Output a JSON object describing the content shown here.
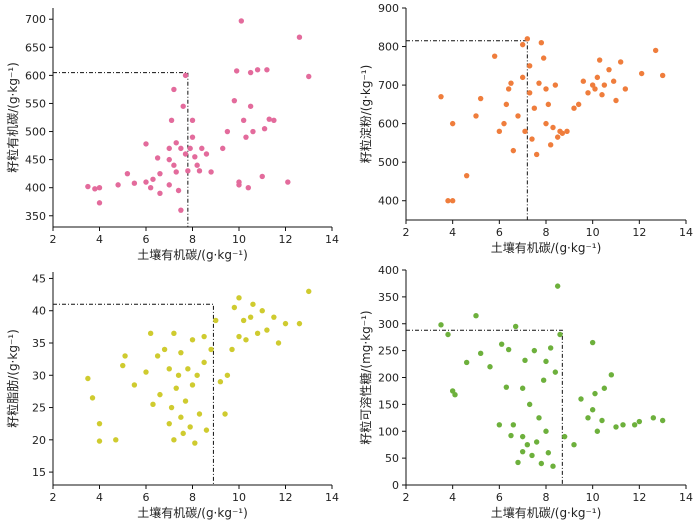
{
  "chart_data": [
    {
      "type": "scatter",
      "color": "#e36b9c",
      "xlabel": "土壤有机碳/(g·kg⁻¹)",
      "ylabel": "籽粒有机碳/(g·kg⁻¹)",
      "xlim": [
        2,
        14
      ],
      "ylim": [
        330,
        720
      ],
      "xticks": [
        2,
        4,
        6,
        8,
        10,
        12,
        14
      ],
      "yticks": [
        350,
        400,
        450,
        500,
        550,
        600,
        650,
        700
      ],
      "threshold": {
        "x": 7.8,
        "y": 605
      },
      "points": [
        [
          3.5,
          402
        ],
        [
          3.8,
          398
        ],
        [
          4.0,
          373
        ],
        [
          4.0,
          400
        ],
        [
          4.8,
          405
        ],
        [
          5.2,
          425
        ],
        [
          5.5,
          408
        ],
        [
          6.0,
          410
        ],
        [
          6.0,
          478
        ],
        [
          6.2,
          400
        ],
        [
          6.3,
          415
        ],
        [
          6.5,
          453
        ],
        [
          6.6,
          390
        ],
        [
          6.6,
          425
        ],
        [
          7.0,
          405
        ],
        [
          7.0,
          450
        ],
        [
          7.0,
          470
        ],
        [
          7.1,
          520
        ],
        [
          7.2,
          440
        ],
        [
          7.2,
          575
        ],
        [
          7.3,
          428
        ],
        [
          7.3,
          480
        ],
        [
          7.4,
          395
        ],
        [
          7.5,
          360
        ],
        [
          7.5,
          470
        ],
        [
          7.6,
          545
        ],
        [
          7.7,
          460
        ],
        [
          7.7,
          600
        ],
        [
          7.8,
          430
        ],
        [
          7.9,
          470
        ],
        [
          8.0,
          490
        ],
        [
          8.0,
          520
        ],
        [
          8.1,
          455
        ],
        [
          8.2,
          440
        ],
        [
          8.3,
          430
        ],
        [
          8.4,
          470
        ],
        [
          8.6,
          460
        ],
        [
          8.8,
          428
        ],
        [
          9.3,
          470
        ],
        [
          9.5,
          500
        ],
        [
          9.8,
          555
        ],
        [
          9.9,
          608
        ],
        [
          10.0,
          405
        ],
        [
          10.0,
          410
        ],
        [
          10.1,
          697
        ],
        [
          10.2,
          520
        ],
        [
          10.3,
          490
        ],
        [
          10.4,
          400
        ],
        [
          10.5,
          545
        ],
        [
          10.5,
          605
        ],
        [
          10.6,
          500
        ],
        [
          10.8,
          610
        ],
        [
          11.0,
          420
        ],
        [
          11.1,
          505
        ],
        [
          11.2,
          610
        ],
        [
          11.3,
          522
        ],
        [
          11.5,
          520
        ],
        [
          12.1,
          410
        ],
        [
          12.6,
          668
        ],
        [
          13.0,
          598
        ]
      ]
    },
    {
      "type": "scatter",
      "color": "#ef7d3c",
      "xlabel": "土壤有机碳/(g·kg⁻¹)",
      "ylabel": "籽粒淀粉/(g·kg⁻¹)",
      "xlim": [
        2,
        14
      ],
      "ylim": [
        350,
        900
      ],
      "xticks": [
        2,
        4,
        6,
        8,
        10,
        12,
        14
      ],
      "yticks": [
        400,
        500,
        600,
        700,
        800,
        900
      ],
      "threshold": {
        "x": 7.2,
        "y": 815
      },
      "points": [
        [
          3.5,
          670
        ],
        [
          3.8,
          400
        ],
        [
          4.0,
          400
        ],
        [
          4.0,
          600
        ],
        [
          4.6,
          465
        ],
        [
          5.0,
          620
        ],
        [
          5.2,
          665
        ],
        [
          5.8,
          775
        ],
        [
          6.0,
          580
        ],
        [
          6.2,
          600
        ],
        [
          6.3,
          650
        ],
        [
          6.4,
          690
        ],
        [
          6.5,
          705
        ],
        [
          6.6,
          530
        ],
        [
          6.8,
          620
        ],
        [
          7.0,
          805
        ],
        [
          7.0,
          720
        ],
        [
          7.1,
          580
        ],
        [
          7.2,
          820
        ],
        [
          7.3,
          750
        ],
        [
          7.3,
          680
        ],
        [
          7.4,
          560
        ],
        [
          7.5,
          640
        ],
        [
          7.6,
          520
        ],
        [
          7.7,
          705
        ],
        [
          7.8,
          810
        ],
        [
          7.9,
          770
        ],
        [
          8.0,
          600
        ],
        [
          8.0,
          690
        ],
        [
          8.1,
          650
        ],
        [
          8.2,
          545
        ],
        [
          8.3,
          590
        ],
        [
          8.4,
          700
        ],
        [
          8.5,
          565
        ],
        [
          8.6,
          580
        ],
        [
          8.7,
          575
        ],
        [
          8.9,
          580
        ],
        [
          9.2,
          640
        ],
        [
          9.4,
          650
        ],
        [
          9.6,
          710
        ],
        [
          9.8,
          680
        ],
        [
          10.0,
          700
        ],
        [
          10.1,
          690
        ],
        [
          10.2,
          720
        ],
        [
          10.3,
          765
        ],
        [
          10.4,
          675
        ],
        [
          10.5,
          700
        ],
        [
          10.7,
          740
        ],
        [
          10.9,
          710
        ],
        [
          11.0,
          660
        ],
        [
          11.2,
          760
        ],
        [
          11.4,
          690
        ],
        [
          12.1,
          730
        ],
        [
          12.7,
          790
        ],
        [
          13.0,
          725
        ]
      ]
    },
    {
      "type": "scatter",
      "color": "#cfcb2f",
      "xlabel": "土壤有机碳/(g·kg⁻¹)",
      "ylabel": "籽粒脂肪/(g·kg⁻¹)",
      "xlim": [
        2,
        14
      ],
      "ylim": [
        13,
        46
      ],
      "xticks": [
        2,
        4,
        6,
        8,
        10,
        12,
        14
      ],
      "yticks": [
        15,
        20,
        25,
        30,
        35,
        40,
        45
      ],
      "threshold": {
        "x": 8.9,
        "y": 41
      },
      "points": [
        [
          3.5,
          29.5
        ],
        [
          3.7,
          26.5
        ],
        [
          4.0,
          19.8
        ],
        [
          4.0,
          22.5
        ],
        [
          4.7,
          20.0
        ],
        [
          5.0,
          31.5
        ],
        [
          5.1,
          33.0
        ],
        [
          5.5,
          28.5
        ],
        [
          6.0,
          30.5
        ],
        [
          6.2,
          36.5
        ],
        [
          6.3,
          25.5
        ],
        [
          6.5,
          33.0
        ],
        [
          6.6,
          27.0
        ],
        [
          6.8,
          34.0
        ],
        [
          7.0,
          22.5
        ],
        [
          7.0,
          31.0
        ],
        [
          7.1,
          25.0
        ],
        [
          7.2,
          20.0
        ],
        [
          7.2,
          36.5
        ],
        [
          7.3,
          28.0
        ],
        [
          7.4,
          30.0
        ],
        [
          7.5,
          23.5
        ],
        [
          7.5,
          33.5
        ],
        [
          7.6,
          21.0
        ],
        [
          7.7,
          26.0
        ],
        [
          7.8,
          31.0
        ],
        [
          7.9,
          22.0
        ],
        [
          8.0,
          35.5
        ],
        [
          8.0,
          28.5
        ],
        [
          8.1,
          19.5
        ],
        [
          8.2,
          30.0
        ],
        [
          8.3,
          24.0
        ],
        [
          8.5,
          36.0
        ],
        [
          8.5,
          32.0
        ],
        [
          8.6,
          21.5
        ],
        [
          8.8,
          34.0
        ],
        [
          9.0,
          38.5
        ],
        [
          9.2,
          29.0
        ],
        [
          9.4,
          24.0
        ],
        [
          9.5,
          30.0
        ],
        [
          9.7,
          34.0
        ],
        [
          9.8,
          40.5
        ],
        [
          10.0,
          42.0
        ],
        [
          10.0,
          36.0
        ],
        [
          10.2,
          38.5
        ],
        [
          10.3,
          35.5
        ],
        [
          10.5,
          39.0
        ],
        [
          10.6,
          41.0
        ],
        [
          10.8,
          36.5
        ],
        [
          11.0,
          40.0
        ],
        [
          11.2,
          37.0
        ],
        [
          11.5,
          39.0
        ],
        [
          11.7,
          35.0
        ],
        [
          12.0,
          38.0
        ],
        [
          12.6,
          38.0
        ],
        [
          13.0,
          43.0
        ]
      ]
    },
    {
      "type": "scatter",
      "color": "#6db03c",
      "xlabel": "土壤有机碳/(g·kg⁻¹)",
      "ylabel": "籽粒可溶性糖/(mg·kg⁻¹)",
      "xlim": [
        2,
        14
      ],
      "ylim": [
        0,
        400
      ],
      "xticks": [
        2,
        4,
        6,
        8,
        10,
        12,
        14
      ],
      "yticks": [
        0,
        50,
        100,
        150,
        200,
        250,
        300,
        350,
        400
      ],
      "threshold": {
        "x": 8.7,
        "y": 288
      },
      "points": [
        [
          3.5,
          298
        ],
        [
          3.8,
          280
        ],
        [
          4.0,
          175
        ],
        [
          4.1,
          168
        ],
        [
          4.6,
          228
        ],
        [
          5.0,
          315
        ],
        [
          5.2,
          245
        ],
        [
          5.6,
          220
        ],
        [
          6.0,
          112
        ],
        [
          6.1,
          262
        ],
        [
          6.3,
          182
        ],
        [
          6.4,
          252
        ],
        [
          6.5,
          92
        ],
        [
          6.6,
          112
        ],
        [
          6.7,
          295
        ],
        [
          6.8,
          42
        ],
        [
          7.0,
          62
        ],
        [
          7.0,
          90
        ],
        [
          7.0,
          180
        ],
        [
          7.1,
          232
        ],
        [
          7.2,
          75
        ],
        [
          7.3,
          150
        ],
        [
          7.4,
          55
        ],
        [
          7.5,
          250
        ],
        [
          7.6,
          80
        ],
        [
          7.7,
          125
        ],
        [
          7.8,
          40
        ],
        [
          7.9,
          195
        ],
        [
          8.0,
          230
        ],
        [
          8.0,
          100
        ],
        [
          8.1,
          60
        ],
        [
          8.2,
          255
        ],
        [
          8.3,
          35
        ],
        [
          8.4,
          210
        ],
        [
          8.5,
          370
        ],
        [
          8.6,
          280
        ],
        [
          8.8,
          90
        ],
        [
          9.2,
          75
        ],
        [
          9.5,
          160
        ],
        [
          9.8,
          125
        ],
        [
          10.0,
          265
        ],
        [
          10.0,
          140
        ],
        [
          10.1,
          170
        ],
        [
          10.2,
          100
        ],
        [
          10.4,
          120
        ],
        [
          10.5,
          180
        ],
        [
          10.8,
          205
        ],
        [
          11.0,
          108
        ],
        [
          11.3,
          112
        ],
        [
          11.8,
          112
        ],
        [
          12.0,
          118
        ],
        [
          12.6,
          125
        ],
        [
          13.0,
          120
        ]
      ]
    }
  ]
}
